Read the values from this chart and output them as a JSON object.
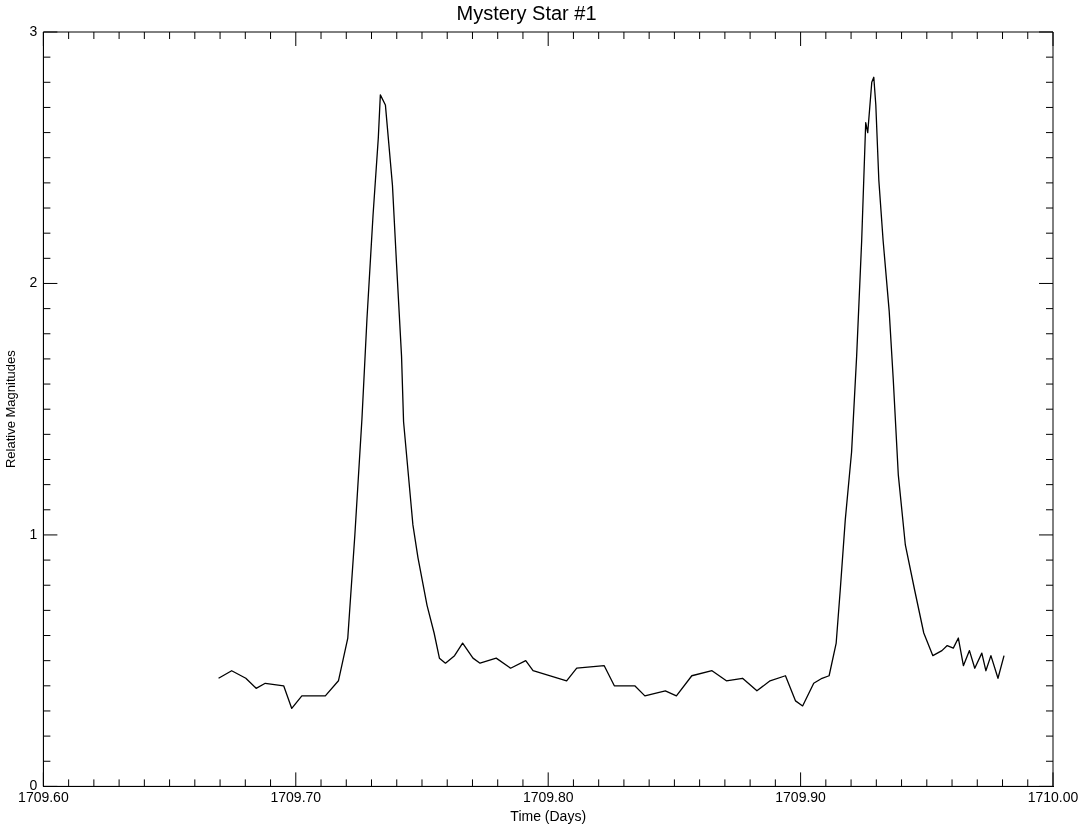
{
  "chart_data": {
    "type": "line",
    "title": "Mystery Star #1",
    "xlabel": "Time (Days)",
    "ylabel": "Relative Magnitudes",
    "xlim": [
      1709.6,
      1710.0
    ],
    "ylim": [
      0,
      3
    ],
    "xticks": [
      {
        "value": 1709.6,
        "label": "1709.60"
      },
      {
        "value": 1709.61,
        "label": null
      },
      {
        "value": 1709.62,
        "label": null
      },
      {
        "value": 1709.63,
        "label": null
      },
      {
        "value": 1709.64,
        "label": null
      },
      {
        "value": 1709.65,
        "label": null
      },
      {
        "value": 1709.66,
        "label": null
      },
      {
        "value": 1709.67,
        "label": null
      },
      {
        "value": 1709.68,
        "label": null
      },
      {
        "value": 1709.69,
        "label": null
      },
      {
        "value": 1709.7,
        "label": "1709.70"
      },
      {
        "value": 1709.71,
        "label": null
      },
      {
        "value": 1709.72,
        "label": null
      },
      {
        "value": 1709.73,
        "label": null
      },
      {
        "value": 1709.74,
        "label": null
      },
      {
        "value": 1709.75,
        "label": null
      },
      {
        "value": 1709.76,
        "label": null
      },
      {
        "value": 1709.77,
        "label": null
      },
      {
        "value": 1709.78,
        "label": null
      },
      {
        "value": 1709.79,
        "label": null
      },
      {
        "value": 1709.8,
        "label": "1709.80"
      },
      {
        "value": 1709.81,
        "label": null
      },
      {
        "value": 1709.82,
        "label": null
      },
      {
        "value": 1709.83,
        "label": null
      },
      {
        "value": 1709.84,
        "label": null
      },
      {
        "value": 1709.85,
        "label": null
      },
      {
        "value": 1709.86,
        "label": null
      },
      {
        "value": 1709.87,
        "label": null
      },
      {
        "value": 1709.88,
        "label": null
      },
      {
        "value": 1709.89,
        "label": null
      },
      {
        "value": 1709.9,
        "label": "1709.90"
      },
      {
        "value": 1709.91,
        "label": null
      },
      {
        "value": 1709.92,
        "label": null
      },
      {
        "value": 1709.93,
        "label": null
      },
      {
        "value": 1709.94,
        "label": null
      },
      {
        "value": 1709.95,
        "label": null
      },
      {
        "value": 1709.96,
        "label": null
      },
      {
        "value": 1709.97,
        "label": null
      },
      {
        "value": 1709.98,
        "label": null
      },
      {
        "value": 1709.99,
        "label": null
      },
      {
        "value": 1710.0,
        "label": "1710.00"
      }
    ],
    "yticks": [
      0,
      {
        "value": 0.1,
        "label": null
      },
      {
        "value": 0.2,
        "label": null
      },
      {
        "value": 0.3,
        "label": null
      },
      {
        "value": 0.4,
        "label": null
      },
      {
        "value": 0.5,
        "label": null
      },
      {
        "value": 0.6,
        "label": null
      },
      {
        "value": 0.7,
        "label": null
      },
      {
        "value": 0.8,
        "label": null
      },
      {
        "value": 0.9,
        "label": null
      },
      1,
      {
        "value": 1.1,
        "label": null
      },
      {
        "value": 1.2,
        "label": null
      },
      {
        "value": 1.3,
        "label": null
      },
      {
        "value": 1.4,
        "label": null
      },
      {
        "value": 1.5,
        "label": null
      },
      {
        "value": 1.6,
        "label": null
      },
      {
        "value": 1.7,
        "label": null
      },
      {
        "value": 1.8,
        "label": null
      },
      {
        "value": 1.9,
        "label": null
      },
      2,
      {
        "value": 2.1,
        "label": null
      },
      {
        "value": 2.2,
        "label": null
      },
      {
        "value": 2.3,
        "label": null
      },
      {
        "value": 2.4,
        "label": null
      },
      {
        "value": 2.5,
        "label": null
      },
      {
        "value": 2.6,
        "label": null
      },
      {
        "value": 2.7,
        "label": null
      },
      {
        "value": 2.8,
        "label": null
      },
      {
        "value": 2.9,
        "label": null
      },
      3
    ],
    "grid": false,
    "legend": false,
    "marker": "none",
    "line_style": "solid",
    "series": [
      {
        "color": "#000000",
        "x": [
          1709.6694,
          1709.6746,
          1709.6802,
          1709.6843,
          1709.6879,
          1709.6952,
          1709.6984,
          1709.7024,
          1709.7117,
          1709.7169,
          1709.7206,
          1709.7234,
          1709.7262,
          1709.7282,
          1709.7306,
          1709.7327,
          1709.7335,
          1709.7355,
          1709.7383,
          1709.7399,
          1709.7419,
          1709.7427,
          1709.7464,
          1709.7484,
          1709.752,
          1709.7548,
          1709.7569,
          1709.7593,
          1709.7629,
          1709.7661,
          1709.7702,
          1709.773,
          1709.7794,
          1709.7851,
          1709.7911,
          1709.794,
          1709.8073,
          1709.8113,
          1709.8222,
          1709.8262,
          1709.8343,
          1709.8383,
          1709.8464,
          1709.8508,
          1709.8569,
          1709.8649,
          1709.8706,
          1709.877,
          1709.8827,
          1709.8879,
          1709.894,
          1709.898,
          1709.9008,
          1709.9052,
          1709.9085,
          1709.9113,
          1709.9141,
          1709.9157,
          1709.9177,
          1709.9202,
          1709.9222,
          1709.9242,
          1709.9258,
          1709.9266,
          1709.9282,
          1709.929,
          1709.9298,
          1709.931,
          1709.9327,
          1709.9351,
          1709.9367,
          1709.9387,
          1709.9415,
          1709.9452,
          1709.9488,
          1709.9524,
          1709.956,
          1709.9581,
          1709.9605,
          1709.9625,
          1709.9645,
          1709.9669,
          1709.969,
          1709.9718,
          1709.9734,
          1709.9754,
          1709.9782,
          1709.9806
        ],
        "values": [
          0.43,
          0.46,
          0.43,
          0.39,
          0.41,
          0.4,
          0.31,
          0.36,
          0.36,
          0.42,
          0.59,
          1.0,
          1.46,
          1.86,
          2.27,
          2.58,
          2.75,
          2.71,
          2.39,
          2.08,
          1.71,
          1.45,
          1.04,
          0.91,
          0.72,
          0.61,
          0.51,
          0.49,
          0.52,
          0.57,
          0.51,
          0.49,
          0.51,
          0.47,
          0.5,
          0.46,
          0.42,
          0.47,
          0.48,
          0.4,
          0.4,
          0.36,
          0.38,
          0.36,
          0.44,
          0.46,
          0.42,
          0.43,
          0.38,
          0.42,
          0.44,
          0.34,
          0.32,
          0.41,
          0.43,
          0.44,
          0.57,
          0.78,
          1.06,
          1.33,
          1.71,
          2.17,
          2.64,
          2.6,
          2.8,
          2.82,
          2.71,
          2.41,
          2.17,
          1.89,
          1.62,
          1.24,
          0.96,
          0.78,
          0.61,
          0.52,
          0.54,
          0.56,
          0.55,
          0.59,
          0.48,
          0.54,
          0.47,
          0.53,
          0.46,
          0.52,
          0.43,
          0.52
        ]
      }
    ]
  }
}
